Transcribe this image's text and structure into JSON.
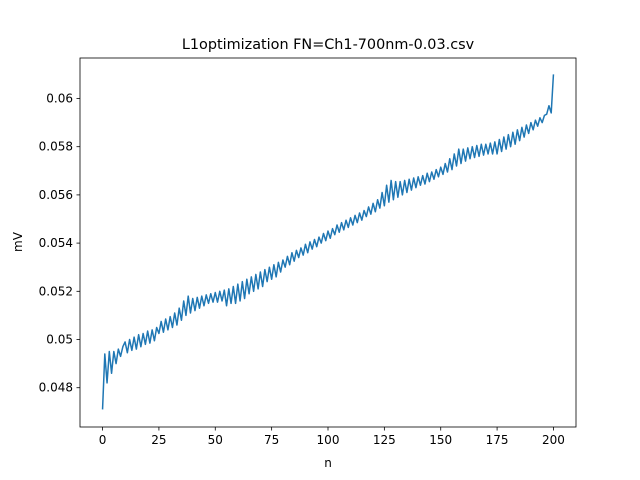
{
  "chart_data": {
    "type": "line",
    "title": "L1optimization FN=Ch1-700nm-0.03.csv",
    "x_label": "n",
    "y_label": "mV",
    "x": [
      0,
      1,
      2,
      3,
      4,
      5,
      6,
      7,
      8,
      9,
      10,
      11,
      12,
      13,
      14,
      15,
      16,
      17,
      18,
      19,
      20,
      21,
      22,
      23,
      24,
      25,
      26,
      27,
      28,
      29,
      30,
      31,
      32,
      33,
      34,
      35,
      36,
      37,
      38,
      39,
      40,
      41,
      42,
      43,
      44,
      45,
      46,
      47,
      48,
      49,
      50,
      51,
      52,
      53,
      54,
      55,
      56,
      57,
      58,
      59,
      60,
      61,
      62,
      63,
      64,
      65,
      66,
      67,
      68,
      69,
      70,
      71,
      72,
      73,
      74,
      75,
      76,
      77,
      78,
      79,
      80,
      81,
      82,
      83,
      84,
      85,
      86,
      87,
      88,
      89,
      90,
      91,
      92,
      93,
      94,
      95,
      96,
      97,
      98,
      99,
      100,
      101,
      102,
      103,
      104,
      105,
      106,
      107,
      108,
      109,
      110,
      111,
      112,
      113,
      114,
      115,
      116,
      117,
      118,
      119,
      120,
      121,
      122,
      123,
      124,
      125,
      126,
      127,
      128,
      129,
      130,
      131,
      132,
      133,
      134,
      135,
      136,
      137,
      138,
      139,
      140,
      141,
      142,
      143,
      144,
      145,
      146,
      147,
      148,
      149,
      150,
      151,
      152,
      153,
      154,
      155,
      156,
      157,
      158,
      159,
      160,
      161,
      162,
      163,
      164,
      165,
      166,
      167,
      168,
      169,
      170,
      171,
      172,
      173,
      174,
      175,
      176,
      177,
      178,
      179,
      180,
      181,
      182,
      183,
      184,
      185,
      186,
      187,
      188,
      189,
      190,
      191,
      192,
      193,
      194,
      195,
      196,
      197,
      198,
      199,
      200
    ],
    "series": [
      {
        "color": "#1f77b4",
        "values": [
          0.0471,
          0.0494,
          0.0482,
          0.0495,
          0.0486,
          0.0495,
          0.049,
          0.0496,
          0.0493,
          0.0497,
          0.0499,
          0.04945,
          0.05,
          0.04955,
          0.0501,
          0.0496,
          0.0502,
          0.0497,
          0.05025,
          0.0498,
          0.05035,
          0.04985,
          0.0504,
          0.04995,
          0.0505,
          0.05025,
          0.05075,
          0.0503,
          0.05085,
          0.0504,
          0.05095,
          0.0505,
          0.0511,
          0.0506,
          0.0513,
          0.0508,
          0.0516,
          0.051,
          0.0518,
          0.0511,
          0.0517,
          0.0512,
          0.05175,
          0.0513,
          0.0518,
          0.0514,
          0.05185,
          0.0515,
          0.0519,
          0.05155,
          0.05195,
          0.05155,
          0.052,
          0.0516,
          0.05205,
          0.0514,
          0.0521,
          0.0515,
          0.0522,
          0.0515,
          0.0523,
          0.0516,
          0.0524,
          0.0517,
          0.0525,
          0.0519,
          0.0526,
          0.052,
          0.0527,
          0.0521,
          0.0528,
          0.0522,
          0.0529,
          0.0524,
          0.053,
          0.0525,
          0.0531,
          0.0526,
          0.0532,
          0.0528,
          0.0533,
          0.053,
          0.05345,
          0.0531,
          0.0536,
          0.05325,
          0.0537,
          0.0534,
          0.0538,
          0.0535,
          0.05395,
          0.0536,
          0.05405,
          0.05375,
          0.05415,
          0.05385,
          0.05425,
          0.054,
          0.0544,
          0.0541,
          0.0545,
          0.0542,
          0.0546,
          0.05435,
          0.05475,
          0.05445,
          0.05485,
          0.05455,
          0.05495,
          0.05465,
          0.05505,
          0.05475,
          0.05515,
          0.05485,
          0.05525,
          0.05495,
          0.05535,
          0.0551,
          0.0555,
          0.0552,
          0.05565,
          0.0553,
          0.0558,
          0.05545,
          0.0561,
          0.05555,
          0.0564,
          0.0557,
          0.0566,
          0.0558,
          0.05655,
          0.0559,
          0.05655,
          0.056,
          0.0566,
          0.0561,
          0.05665,
          0.0562,
          0.0567,
          0.0563,
          0.05675,
          0.0564,
          0.0568,
          0.05645,
          0.0569,
          0.05655,
          0.05695,
          0.05665,
          0.05705,
          0.05675,
          0.05715,
          0.05685,
          0.0573,
          0.05695,
          0.0575,
          0.05705,
          0.0577,
          0.0572,
          0.0579,
          0.0573,
          0.0579,
          0.0574,
          0.05795,
          0.0575,
          0.058,
          0.05755,
          0.05805,
          0.0576,
          0.0581,
          0.05765,
          0.0581,
          0.0577,
          0.05815,
          0.0577,
          0.0582,
          0.0577,
          0.0583,
          0.0578,
          0.0584,
          0.0579,
          0.0585,
          0.058,
          0.0586,
          0.0581,
          0.0587,
          0.05825,
          0.0588,
          0.0584,
          0.0589,
          0.05855,
          0.059,
          0.0587,
          0.0591,
          0.05885,
          0.0592,
          0.059,
          0.0593,
          0.05935,
          0.0597,
          0.0594,
          0.061
        ]
      }
    ],
    "xlim": [
      -10,
      210
    ],
    "xticks": [
      0,
      25,
      50,
      75,
      100,
      125,
      150,
      175,
      200
    ],
    "ylim": [
      0.04637,
      0.06168
    ],
    "yticks": [
      0.048,
      0.05,
      0.052,
      0.054,
      0.056,
      0.058,
      0.06
    ],
    "grid": false
  }
}
